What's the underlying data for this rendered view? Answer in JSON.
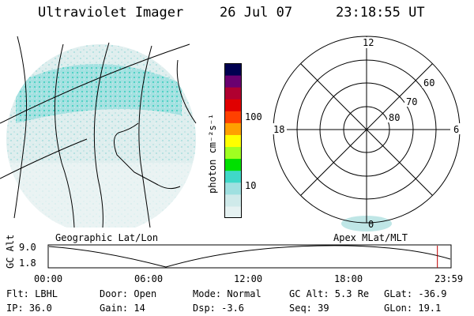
{
  "header": {
    "title": "Ultraviolet Imager",
    "date": "26 Jul 07",
    "time": "23:18:55 UT"
  },
  "colorbar": {
    "label": "photon cm⁻²s⁻¹",
    "tick_labels": [
      "100",
      "10"
    ],
    "colors": [
      "#e6f2f2",
      "#cfeaea",
      "#9fe0e0",
      "#40d8c8",
      "#00e000",
      "#a0ff20",
      "#ffff00",
      "#ffa000",
      "#ff4000",
      "#e00000",
      "#b00030",
      "#6a0070",
      "#000050"
    ]
  },
  "polar": {
    "mlt_labels": [
      "12",
      "6",
      "0",
      "18"
    ],
    "lat_labels": [
      "60",
      "70",
      "80"
    ]
  },
  "altitude_panel": {
    "left_title": "Geographic Lat/Lon",
    "right_title": "Apex  MLat/MLT",
    "y_axis_label": "GC Alt",
    "y_ticks": [
      "9.0",
      "1.8"
    ],
    "x_ticks": [
      "00:00",
      "06:00",
      "12:00",
      "18:00",
      "23:59"
    ],
    "current_time_fraction": 0.966
  },
  "info": {
    "flt": "Flt: LBHL",
    "ip": "IP: 36.0",
    "door": "Door: Open",
    "gain": "Gain: 14",
    "mode": "Mode: Normal",
    "dsp": "Dsp:   -3.6",
    "gcalt": "GC Alt: 5.3 Re",
    "seq": "Seq: 39",
    "glat": "GLat: -36.9",
    "glon": "GLon:  19.1"
  }
}
